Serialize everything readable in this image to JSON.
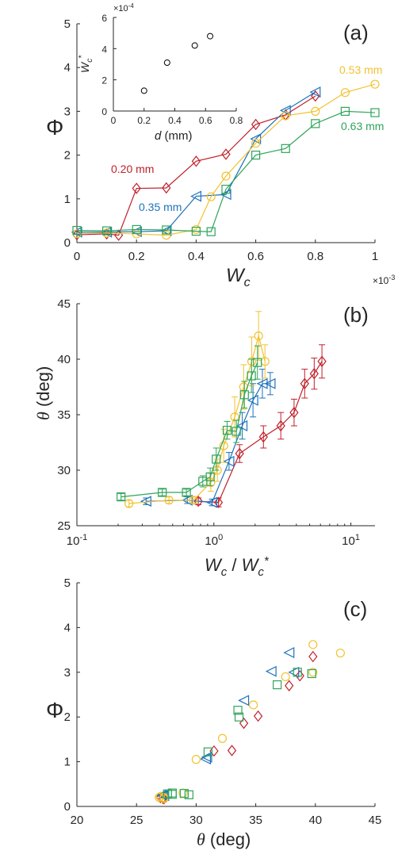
{
  "colors": {
    "0.20 mm": "#C0202A",
    "0.35 mm": "#1E72BE",
    "0.53 mm": "#F2C230",
    "0.63 mm": "#2FA45A",
    "axis": "#262626"
  },
  "chart_data": [
    {
      "type": "line",
      "panel_label": "(a)",
      "xlabel": "W_c",
      "ylabel": "Φ",
      "xlim": [
        0,
        1
      ],
      "ylim": [
        0,
        5
      ],
      "x_scale_label": "×10^-3",
      "xticks": [
        "0",
        "0.2",
        "0.4",
        "0.6",
        "0.8",
        "1"
      ],
      "yticks": [
        "0",
        "1",
        "2",
        "3",
        "4",
        "5"
      ],
      "series": [
        {
          "name": "0.20 mm",
          "marker": "diamond",
          "x": [
            0,
            0.1,
            0.14,
            0.2,
            0.3,
            0.4,
            0.5,
            0.6,
            0.7,
            0.8
          ],
          "y": [
            0.18,
            0.2,
            0.17,
            1.24,
            1.25,
            1.86,
            2.02,
            2.7,
            2.92,
            3.35
          ]
        },
        {
          "name": "0.35 mm",
          "marker": "triangle-left",
          "x": [
            0,
            0.1,
            0.2,
            0.3,
            0.4,
            0.5,
            0.6,
            0.7,
            0.8
          ],
          "y": [
            0.24,
            0.24,
            0.25,
            0.27,
            1.06,
            1.1,
            2.37,
            3.02,
            3.44
          ]
        },
        {
          "name": "0.53 mm",
          "marker": "circle",
          "x": [
            0,
            0.1,
            0.2,
            0.3,
            0.4,
            0.45,
            0.5,
            0.6,
            0.7,
            0.8,
            0.9,
            1.0
          ],
          "y": [
            0.2,
            0.22,
            0.2,
            0.17,
            0.3,
            1.05,
            1.52,
            2.27,
            2.9,
            3.0,
            3.43,
            3.62
          ]
        },
        {
          "name": "0.63 mm",
          "marker": "square",
          "x": [
            0,
            0.1,
            0.2,
            0.3,
            0.4,
            0.45,
            0.5,
            0.6,
            0.7,
            0.8,
            0.9,
            1.0
          ],
          "y": [
            0.28,
            0.27,
            0.3,
            0.29,
            0.26,
            0.25,
            1.22,
            2.0,
            2.15,
            2.72,
            3.0,
            2.97
          ]
        }
      ],
      "annotations": [
        "0.20 mm",
        "0.35 mm",
        "0.53 mm",
        "0.63 mm"
      ],
      "inset": {
        "type": "scatter",
        "xlabel": "d (mm)",
        "ylabel": "W_c^*",
        "y_scale_label": "×10^-4",
        "xlim": [
          0,
          0.8
        ],
        "ylim": [
          0,
          6
        ],
        "xticks": [
          "0",
          "0.2",
          "0.4",
          "0.6",
          "0.8"
        ],
        "yticks": [
          "0",
          "2",
          "4",
          "6"
        ],
        "x": [
          0.2,
          0.35,
          0.53,
          0.63
        ],
        "y": [
          1.3,
          3.1,
          4.2,
          4.8
        ]
      }
    },
    {
      "type": "line",
      "panel_label": "(b)",
      "xlabel": "W_c / W_c^*",
      "ylabel": "θ (deg)",
      "xscale": "log",
      "xlim": [
        0.1,
        15
      ],
      "ylim": [
        25,
        45
      ],
      "xticks": [
        "10^-1",
        "10^0",
        "10^1"
      ],
      "yticks": [
        "25",
        "30",
        "35",
        "40",
        "45"
      ],
      "series": [
        {
          "name": "0.20 mm",
          "marker": "diamond",
          "x": [
            0.77,
            1.08,
            1.54,
            2.3,
            3.08,
            3.85,
            4.6,
            5.4,
            6.15
          ],
          "y": [
            27.2,
            27.1,
            31.5,
            33.0,
            34.0,
            35.2,
            37.8,
            38.7,
            39.8
          ],
          "err": [
            0.3,
            0.4,
            0.8,
            1.0,
            1.2,
            1.2,
            1.3,
            1.4,
            1.5
          ]
        },
        {
          "name": "0.35 mm",
          "marker": "triangle-left",
          "x": [
            0.32,
            0.64,
            0.97,
            1.29,
            1.61,
            1.93,
            2.26,
            2.58
          ],
          "y": [
            27.2,
            27.3,
            27.1,
            30.8,
            34.0,
            36.3,
            37.8,
            37.8
          ],
          "err": [
            0.3,
            0.3,
            0.3,
            0.8,
            1.2,
            1.5,
            1.3,
            1.0
          ]
        },
        {
          "name": "0.53 mm",
          "marker": "circle",
          "x": [
            0.24,
            0.47,
            0.71,
            0.95,
            1.06,
            1.18,
            1.42,
            1.65,
            1.89,
            2.12,
            2.36
          ],
          "y": [
            27.0,
            27.3,
            27.3,
            28.9,
            30.0,
            32.2,
            34.8,
            37.5,
            39.8,
            42.1,
            39.8
          ],
          "err": [
            0.3,
            0.3,
            0.3,
            0.8,
            1.0,
            1.5,
            1.8,
            2.0,
            2.2,
            2.2,
            1.5
          ]
        },
        {
          "name": "0.63 mm",
          "marker": "square",
          "x": [
            0.21,
            0.42,
            0.63,
            0.83,
            0.94,
            1.04,
            1.25,
            1.46,
            1.67,
            1.88,
            2.08
          ],
          "y": [
            27.6,
            28.0,
            28.0,
            29.0,
            29.4,
            31.0,
            33.6,
            33.5,
            36.8,
            38.5,
            39.7
          ],
          "err": [
            0.3,
            0.3,
            0.3,
            0.5,
            0.8,
            1.0,
            0.8,
            1.0,
            1.2,
            1.5,
            1.5
          ]
        }
      ]
    },
    {
      "type": "scatter",
      "panel_label": "(c)",
      "xlabel": "θ (deg)",
      "ylabel": "Φ",
      "xlim": [
        20,
        45
      ],
      "ylim": [
        0,
        5
      ],
      "xticks": [
        "20",
        "25",
        "30",
        "35",
        "40",
        "45"
      ],
      "yticks": [
        "0",
        "1",
        "2",
        "3",
        "4",
        "5"
      ],
      "series": [
        {
          "name": "0.20 mm",
          "marker": "diamond",
          "x": [
            27.2,
            27.0,
            27.3,
            31.5,
            33.0,
            34.0,
            35.2,
            37.8,
            38.7,
            39.8
          ],
          "y": [
            0.18,
            0.2,
            0.17,
            1.24,
            1.25,
            1.86,
            2.02,
            2.7,
            2.92,
            3.35
          ]
        },
        {
          "name": "0.35 mm",
          "marker": "triangle-left",
          "x": [
            27.2,
            27.3,
            27.1,
            30.8,
            30.9,
            34.0,
            36.3,
            37.8,
            38.2
          ],
          "y": [
            0.24,
            0.24,
            0.25,
            1.06,
            1.1,
            2.37,
            3.02,
            3.44,
            3.0
          ]
        },
        {
          "name": "0.53 mm",
          "marker": "circle",
          "x": [
            26.9,
            27.0,
            27.3,
            27.3,
            28.9,
            30.0,
            32.2,
            34.8,
            37.5,
            39.8,
            42.1,
            39.8
          ],
          "y": [
            0.2,
            0.22,
            0.2,
            0.17,
            0.3,
            1.05,
            1.52,
            2.27,
            2.9,
            3.0,
            3.43,
            3.62
          ]
        },
        {
          "name": "0.63 mm",
          "marker": "square",
          "x": [
            27.6,
            28.0,
            28.0,
            29.0,
            29.4,
            31.0,
            33.6,
            33.5,
            36.8,
            38.5,
            39.7
          ],
          "y": [
            0.28,
            0.27,
            0.3,
            0.29,
            0.26,
            1.22,
            2.0,
            2.15,
            2.72,
            3.0,
            2.97
          ]
        }
      ]
    }
  ]
}
